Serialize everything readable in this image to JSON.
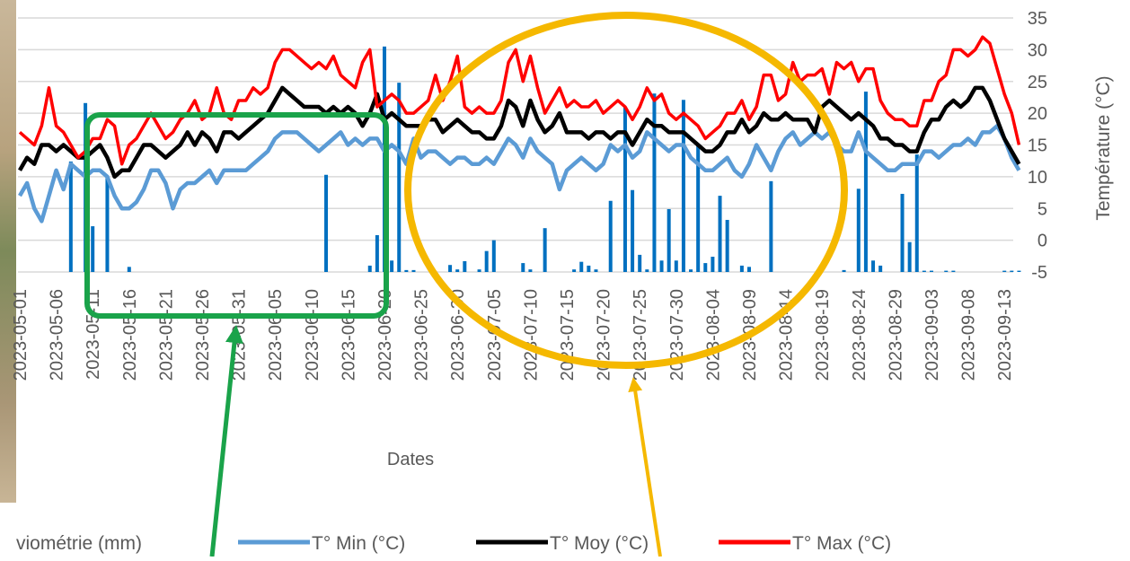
{
  "chart_data": {
    "type": "bar-line",
    "x_label": "Dates",
    "y_label": "Température (°C)",
    "categories": [
      "2023-05-01",
      null,
      null,
      null,
      null,
      "2023-05-06",
      null,
      null,
      null,
      null,
      "2023-05-11",
      null,
      null,
      null,
      null,
      "2023-05-16",
      null,
      null,
      null,
      null,
      "2023-05-21",
      null,
      null,
      null,
      null,
      "2023-05-26",
      null,
      null,
      null,
      null,
      "2023-05-31",
      null,
      null,
      null,
      null,
      "2023-06-05",
      null,
      null,
      null,
      null,
      "2023-06-10",
      null,
      null,
      null,
      null,
      "2023-06-15",
      null,
      null,
      null,
      null,
      "2023-06-20",
      null,
      null,
      null,
      null,
      "2023-06-25",
      null,
      null,
      null,
      null,
      "2023-06-30",
      null,
      null,
      null,
      null,
      "2023-07-05",
      null,
      null,
      null,
      null,
      "2023-07-10",
      null,
      null,
      null,
      null,
      "2023-07-15",
      null,
      null,
      null,
      null,
      "2023-07-20",
      null,
      null,
      null,
      null,
      "2023-07-25",
      null,
      null,
      null,
      null,
      "2023-07-30",
      null,
      null,
      null,
      null,
      "2023-08-04",
      null,
      null,
      null,
      null,
      "2023-08-09",
      null,
      null,
      null,
      null,
      "2023-08-14",
      null,
      null,
      null,
      null,
      "2023-08-19",
      null,
      null,
      null,
      null,
      "2023-08-24",
      null,
      null,
      null,
      null,
      "2023-08-29",
      null,
      null,
      null,
      null,
      "2023-09-03",
      null,
      null,
      null,
      null,
      "2023-09-08",
      null,
      null,
      null,
      null,
      "2023-09-13",
      null,
      null
    ],
    "ylim": [
      -5,
      35
    ],
    "yticks": [
      -5,
      0,
      5,
      10,
      15,
      20,
      25,
      30,
      35
    ],
    "grid": true,
    "y2lim": [
      0,
      40
    ],
    "series": [
      {
        "name": "viométrie (mm)",
        "type": "bar",
        "axis": "y2",
        "color": "#0070c0",
        "values": [
          0,
          0,
          0,
          0,
          0,
          0,
          0,
          17.4,
          0,
          26.6,
          7.2,
          0,
          15.1,
          0,
          0,
          0.8,
          0,
          0,
          0,
          0,
          0,
          0,
          0,
          0,
          0,
          0,
          0,
          0,
          0,
          0,
          0,
          0,
          0,
          0,
          0,
          0,
          0,
          0,
          0,
          0,
          0,
          0,
          15.3,
          0,
          0,
          0,
          0,
          0,
          1,
          5.8,
          35.5,
          1.8,
          29.8,
          0.3,
          0.3,
          0,
          0,
          0,
          0,
          1.1,
          0.4,
          1.7,
          0,
          0.4,
          3.3,
          5,
          0,
          0,
          0,
          1.4,
          0.4,
          0,
          6.9,
          0,
          0,
          0,
          0.4,
          1.6,
          1,
          0.4,
          0,
          11.2,
          0,
          26,
          12.9,
          2.7,
          0.4,
          28.1,
          1.8,
          9.9,
          1.8,
          27.1,
          0.4,
          20.2,
          1.4,
          2.4,
          12,
          8.2,
          0,
          1,
          0.8,
          0,
          0,
          14.3,
          0,
          0,
          0,
          0,
          0,
          0,
          0,
          0,
          0,
          0.3,
          0,
          13.1,
          28.4,
          1.8,
          1,
          0,
          0,
          12.3,
          4.7,
          18.5,
          0.2,
          0.2,
          0,
          0.2,
          0.2,
          0,
          0,
          0,
          0,
          0,
          0,
          0.2,
          0.2,
          0.2
        ]
      },
      {
        "name": "T° Min (°C)",
        "type": "line",
        "color": "#5b9bd5",
        "values": [
          7,
          9,
          5,
          3,
          7,
          11,
          8,
          12,
          11,
          10,
          11,
          11,
          10,
          7,
          5,
          5,
          6,
          8,
          11,
          11,
          9,
          5,
          8,
          9,
          9,
          10,
          11,
          9,
          11,
          11,
          11,
          11,
          12,
          13,
          14,
          16,
          17,
          17,
          17,
          16,
          15,
          14,
          15,
          16,
          17,
          15,
          16,
          15,
          16,
          16,
          14,
          15,
          14,
          12,
          16,
          13,
          14,
          14,
          13,
          12,
          13,
          13,
          12,
          12,
          13,
          12,
          14,
          16,
          15,
          13,
          16,
          14,
          13,
          12,
          8,
          11,
          12,
          13,
          12,
          11,
          12,
          15,
          14,
          15,
          13,
          14,
          17,
          16,
          15,
          14,
          15,
          15,
          13,
          12,
          11,
          11,
          12,
          13,
          11,
          10,
          12,
          15,
          13,
          11,
          14,
          16,
          17,
          15,
          16,
          17,
          16,
          17,
          15,
          14,
          14,
          17,
          14,
          13,
          12,
          11,
          11,
          12,
          12,
          12,
          14,
          14,
          13,
          14,
          15,
          15,
          16,
          15,
          17,
          17,
          18,
          16,
          13,
          11
        ]
      },
      {
        "name": "T° Moy (°C)",
        "type": "line",
        "color": "#000000",
        "values": [
          11,
          13,
          12,
          15,
          15,
          14,
          15,
          14,
          13,
          13,
          14,
          15,
          13,
          10,
          11,
          11,
          13,
          15,
          15,
          14,
          13,
          14,
          15,
          17,
          15,
          17,
          16,
          14,
          17,
          17,
          16,
          17,
          18,
          19,
          20,
          22,
          24,
          23,
          22,
          21,
          21,
          21,
          20,
          21,
          20,
          21,
          20,
          18,
          20,
          23,
          19,
          20,
          19,
          18,
          18,
          18,
          19,
          19,
          17,
          18,
          19,
          18,
          17,
          17,
          16,
          16,
          18,
          22,
          21,
          18,
          22,
          19,
          17,
          18,
          20,
          17,
          17,
          17,
          16,
          17,
          17,
          16,
          17,
          17,
          15,
          17,
          19,
          18,
          18,
          17,
          17,
          17,
          16,
          15,
          14,
          14,
          15,
          17,
          17,
          19,
          17,
          18,
          20,
          19,
          19,
          20,
          19,
          19,
          19,
          17,
          21,
          22,
          21,
          20,
          19,
          20,
          19,
          18,
          16,
          16,
          15,
          15,
          14,
          14,
          17,
          19,
          19,
          21,
          22,
          21,
          22,
          24,
          24,
          22,
          19,
          16,
          14,
          12
        ]
      },
      {
        "name": "T° Max (°C)",
        "type": "line",
        "color": "#ff0000",
        "values": [
          17,
          16,
          15,
          18,
          24,
          18,
          17,
          15,
          13,
          14,
          16,
          16,
          19,
          18,
          12,
          15,
          16,
          18,
          20,
          18,
          16,
          17,
          19,
          20,
          22,
          19,
          20,
          24,
          20,
          19,
          22,
          22,
          24,
          23,
          24,
          28,
          30,
          30,
          29,
          28,
          27,
          28,
          27,
          29,
          26,
          25,
          24,
          28,
          30,
          21,
          22,
          23,
          22,
          20,
          20,
          21,
          22,
          26,
          22,
          25,
          29,
          21,
          20,
          21,
          20,
          20,
          22,
          28,
          30,
          25,
          29,
          24,
          20,
          22,
          24,
          21,
          22,
          21,
          21,
          22,
          20,
          21,
          22,
          21,
          19,
          21,
          24,
          22,
          23,
          20,
          19,
          20,
          19,
          18,
          16,
          17,
          18,
          20,
          20,
          22,
          19,
          21,
          26,
          26,
          22,
          23,
          28,
          25,
          26,
          26,
          27,
          23,
          28,
          27,
          28,
          25,
          27,
          27,
          22,
          20,
          19,
          19,
          18,
          18,
          22,
          22,
          25,
          26,
          30,
          30,
          29,
          30,
          32,
          31,
          27,
          23,
          20,
          15
        ]
      }
    ]
  }
}
